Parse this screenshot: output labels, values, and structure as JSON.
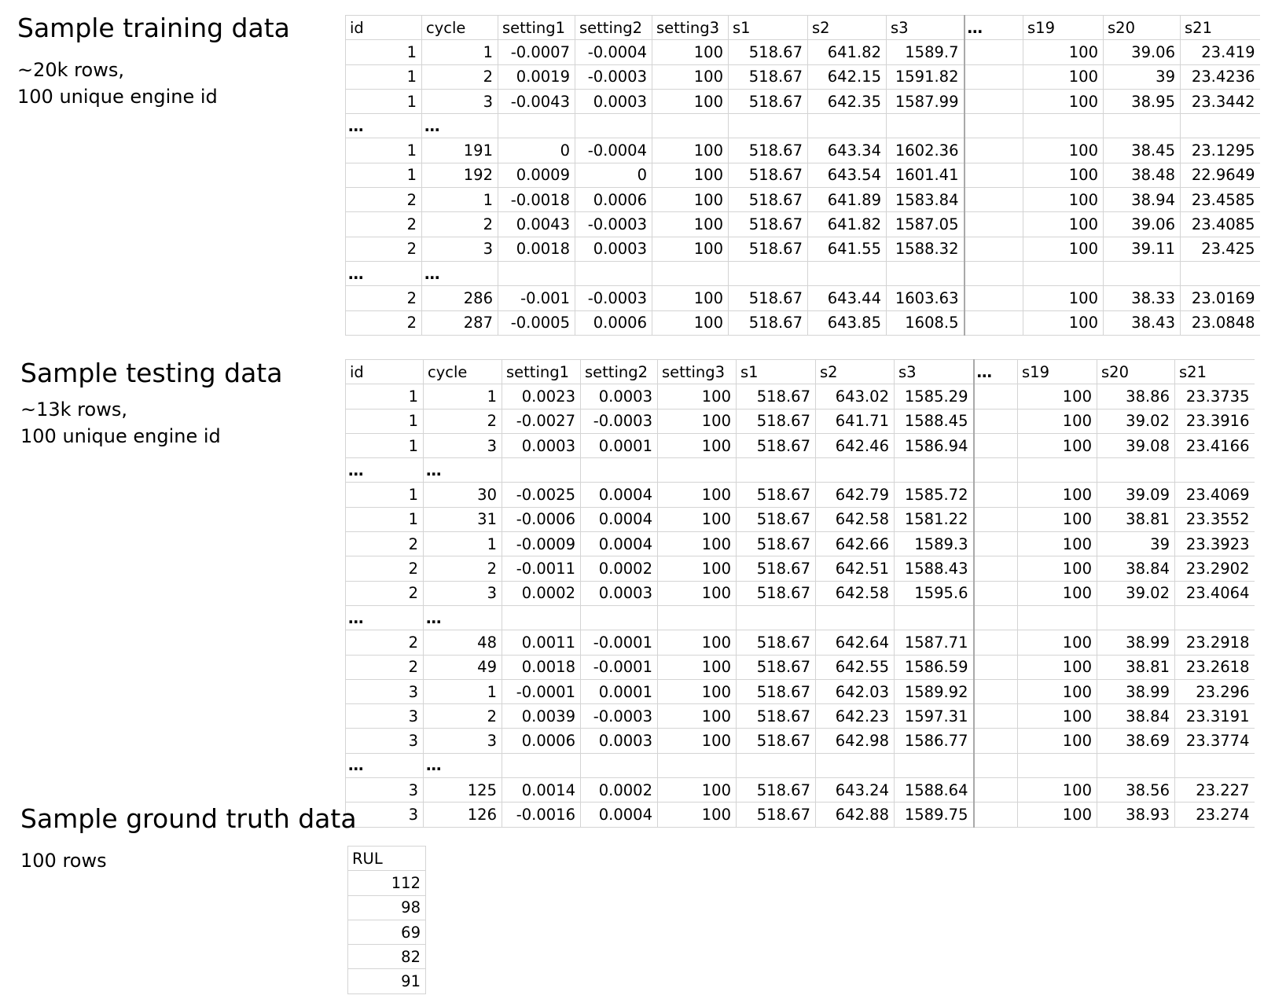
{
  "training": {
    "title": "Sample training data",
    "desc_line1": "~20k rows,",
    "desc_line2": "100 unique engine id",
    "headers": [
      "id",
      "cycle",
      "setting1",
      "setting2",
      "setting3",
      "s1",
      "s2",
      "s3",
      "…",
      "s19",
      "s20",
      "s21"
    ],
    "rows": [
      [
        "1",
        "1",
        "-0.0007",
        "-0.0004",
        "100",
        "518.67",
        "641.82",
        "1589.7",
        "",
        "100",
        "39.06",
        "23.419"
      ],
      [
        "1",
        "2",
        "0.0019",
        "-0.0003",
        "100",
        "518.67",
        "642.15",
        "1591.82",
        "",
        "100",
        "39",
        "23.4236"
      ],
      [
        "1",
        "3",
        "-0.0043",
        "0.0003",
        "100",
        "518.67",
        "642.35",
        "1587.99",
        "",
        "100",
        "38.95",
        "23.3442"
      ],
      "gap",
      [
        "1",
        "191",
        "0",
        "-0.0004",
        "100",
        "518.67",
        "643.34",
        "1602.36",
        "",
        "100",
        "38.45",
        "23.1295"
      ],
      [
        "1",
        "192",
        "0.0009",
        "0",
        "100",
        "518.67",
        "643.54",
        "1601.41",
        "",
        "100",
        "38.48",
        "22.9649"
      ],
      [
        "2",
        "1",
        "-0.0018",
        "0.0006",
        "100",
        "518.67",
        "641.89",
        "1583.84",
        "",
        "100",
        "38.94",
        "23.4585"
      ],
      [
        "2",
        "2",
        "0.0043",
        "-0.0003",
        "100",
        "518.67",
        "641.82",
        "1587.05",
        "",
        "100",
        "39.06",
        "23.4085"
      ],
      [
        "2",
        "3",
        "0.0018",
        "0.0003",
        "100",
        "518.67",
        "641.55",
        "1588.32",
        "",
        "100",
        "39.11",
        "23.425"
      ],
      "gap",
      [
        "2",
        "286",
        "-0.001",
        "-0.0003",
        "100",
        "518.67",
        "643.44",
        "1603.63",
        "",
        "100",
        "38.33",
        "23.0169"
      ],
      [
        "2",
        "287",
        "-0.0005",
        "0.0006",
        "100",
        "518.67",
        "643.85",
        "1608.5",
        "",
        "100",
        "38.43",
        "23.0848"
      ]
    ]
  },
  "testing": {
    "title": "Sample testing data",
    "desc_line1": "~13k rows,",
    "desc_line2": "100 unique engine id",
    "headers": [
      "id",
      "cycle",
      "setting1",
      "setting2",
      "setting3",
      "s1",
      "s2",
      "s3",
      "…",
      "s19",
      "s20",
      "s21"
    ],
    "rows": [
      [
        "1",
        "1",
        "0.0023",
        "0.0003",
        "100",
        "518.67",
        "643.02",
        "1585.29",
        "",
        "100",
        "38.86",
        "23.3735"
      ],
      [
        "1",
        "2",
        "-0.0027",
        "-0.0003",
        "100",
        "518.67",
        "641.71",
        "1588.45",
        "",
        "100",
        "39.02",
        "23.3916"
      ],
      [
        "1",
        "3",
        "0.0003",
        "0.0001",
        "100",
        "518.67",
        "642.46",
        "1586.94",
        "",
        "100",
        "39.08",
        "23.4166"
      ],
      "gap",
      [
        "1",
        "30",
        "-0.0025",
        "0.0004",
        "100",
        "518.67",
        "642.79",
        "1585.72",
        "",
        "100",
        "39.09",
        "23.4069"
      ],
      [
        "1",
        "31",
        "-0.0006",
        "0.0004",
        "100",
        "518.67",
        "642.58",
        "1581.22",
        "",
        "100",
        "38.81",
        "23.3552"
      ],
      [
        "2",
        "1",
        "-0.0009",
        "0.0004",
        "100",
        "518.67",
        "642.66",
        "1589.3",
        "",
        "100",
        "39",
        "23.3923"
      ],
      [
        "2",
        "2",
        "-0.0011",
        "0.0002",
        "100",
        "518.67",
        "642.51",
        "1588.43",
        "",
        "100",
        "38.84",
        "23.2902"
      ],
      [
        "2",
        "3",
        "0.0002",
        "0.0003",
        "100",
        "518.67",
        "642.58",
        "1595.6",
        "",
        "100",
        "39.02",
        "23.4064"
      ],
      "gap",
      [
        "2",
        "48",
        "0.0011",
        "-0.0001",
        "100",
        "518.67",
        "642.64",
        "1587.71",
        "",
        "100",
        "38.99",
        "23.2918"
      ],
      [
        "2",
        "49",
        "0.0018",
        "-0.0001",
        "100",
        "518.67",
        "642.55",
        "1586.59",
        "",
        "100",
        "38.81",
        "23.2618"
      ],
      [
        "3",
        "1",
        "-0.0001",
        "0.0001",
        "100",
        "518.67",
        "642.03",
        "1589.92",
        "",
        "100",
        "38.99",
        "23.296"
      ],
      [
        "3",
        "2",
        "0.0039",
        "-0.0003",
        "100",
        "518.67",
        "642.23",
        "1597.31",
        "",
        "100",
        "38.84",
        "23.3191"
      ],
      [
        "3",
        "3",
        "0.0006",
        "0.0003",
        "100",
        "518.67",
        "642.98",
        "1586.77",
        "",
        "100",
        "38.69",
        "23.3774"
      ],
      "gap",
      [
        "3",
        "125",
        "0.0014",
        "0.0002",
        "100",
        "518.67",
        "643.24",
        "1588.64",
        "",
        "100",
        "38.56",
        "23.227"
      ],
      [
        "3",
        "126",
        "-0.0016",
        "0.0004",
        "100",
        "518.67",
        "642.88",
        "1589.75",
        "",
        "100",
        "38.93",
        "23.274"
      ]
    ]
  },
  "ground_truth": {
    "title": "Sample ground truth data",
    "desc_line1": "100 rows",
    "headers": [
      "RUL"
    ],
    "rows": [
      [
        "112"
      ],
      [
        "98"
      ],
      [
        "69"
      ],
      [
        "82"
      ],
      [
        "91"
      ]
    ]
  },
  "gap_marker": "…"
}
